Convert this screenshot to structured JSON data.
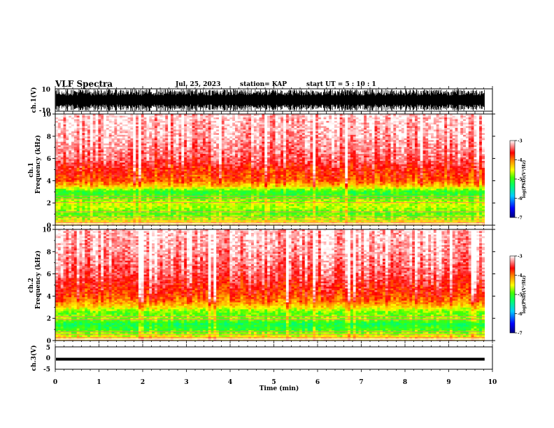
{
  "header": {
    "title": "VLF Spectra",
    "date": "Jul. 25, 2023",
    "station": "station= KAP",
    "start": "start  UT =   5 : 10 : 1"
  },
  "chart_data": [
    {
      "type": "line",
      "name": "ch1-waveform",
      "ylabel": "ch.1(V)",
      "ylim": [
        -10,
        10
      ],
      "tick_labels": [
        "10",
        "-10"
      ],
      "xlim": [
        0,
        10
      ],
      "data_end_min": 9.82
    },
    {
      "type": "heatmap",
      "name": "ch1-spectrogram",
      "ylabel": "ch.1\nFrequency  (kHz)",
      "ylabel_lines": [
        "ch.1",
        "Frequency  (kHz)"
      ],
      "ylim": [
        0,
        10
      ],
      "yticks": [
        0,
        2,
        4,
        6,
        8,
        10
      ],
      "xlim": [
        0,
        10
      ],
      "colorbar": {
        "label": "log(PSD)(V²/Hz)",
        "range": [
          -7,
          -3
        ],
        "ticks": [
          "-3",
          "-4",
          "-5",
          "-6",
          "-7"
        ]
      },
      "profile_log_psd": [
        {
          "f": 0.1,
          "v": -4.2
        },
        {
          "f": 0.5,
          "v": -4.6
        },
        {
          "f": 1.0,
          "v": -4.9
        },
        {
          "f": 1.5,
          "v": -4.7
        },
        {
          "f": 2.0,
          "v": -4.6
        },
        {
          "f": 2.5,
          "v": -4.9
        },
        {
          "f": 3.0,
          "v": -5.1
        },
        {
          "f": 3.5,
          "v": -4.3
        },
        {
          "f": 4.0,
          "v": -3.9
        },
        {
          "f": 5.0,
          "v": -3.7
        },
        {
          "f": 6.0,
          "v": -3.4
        },
        {
          "f": 8.0,
          "v": -3.2
        },
        {
          "f": 10.0,
          "v": -3.1
        }
      ]
    },
    {
      "type": "heatmap",
      "name": "ch2-spectrogram",
      "ylabel": "ch.2\nFrequency  (kHz)",
      "ylabel_lines": [
        "ch.2",
        "Frequency  (kHz)"
      ],
      "ylim": [
        0,
        10
      ],
      "yticks": [
        0,
        2,
        4,
        6,
        8,
        10
      ],
      "xlim": [
        0,
        10
      ],
      "colorbar": {
        "label": "log(PSD)(V²/Hz)",
        "range": [
          -7,
          -3
        ],
        "ticks": [
          "-3",
          "-4",
          "-5",
          "-6",
          "-7"
        ]
      },
      "profile_log_psd": [
        {
          "f": 0.1,
          "v": -4.2
        },
        {
          "f": 0.5,
          "v": -4.6
        },
        {
          "f": 1.0,
          "v": -5.0
        },
        {
          "f": 1.5,
          "v": -5.2
        },
        {
          "f": 2.0,
          "v": -4.7
        },
        {
          "f": 2.5,
          "v": -4.9
        },
        {
          "f": 3.0,
          "v": -4.4
        },
        {
          "f": 3.5,
          "v": -4.0
        },
        {
          "f": 4.0,
          "v": -3.8
        },
        {
          "f": 5.0,
          "v": -3.6
        },
        {
          "f": 6.0,
          "v": -3.4
        },
        {
          "f": 8.0,
          "v": -3.2
        },
        {
          "f": 10.0,
          "v": -3.1
        }
      ]
    },
    {
      "type": "line",
      "name": "ch3-waveform",
      "ylabel": "ch.3(V)",
      "ylim": [
        -5,
        5
      ],
      "tick_labels": [
        "5",
        "0",
        "-5"
      ],
      "level": -0.5,
      "xlim": [
        0,
        10
      ],
      "data_end_min": 9.82
    }
  ],
  "xaxis": {
    "label": "Time  (min)",
    "ticks": [
      "0",
      "1",
      "2",
      "3",
      "4",
      "5",
      "6",
      "7",
      "8",
      "9",
      "10"
    ]
  },
  "colors": {
    "colormap": [
      "#000080",
      "#0000ff",
      "#00aaff",
      "#00ffcc",
      "#00ff00",
      "#aaff00",
      "#ffff00",
      "#ff9900",
      "#ff0000",
      "#ffffff"
    ],
    "ink": "#000000"
  }
}
